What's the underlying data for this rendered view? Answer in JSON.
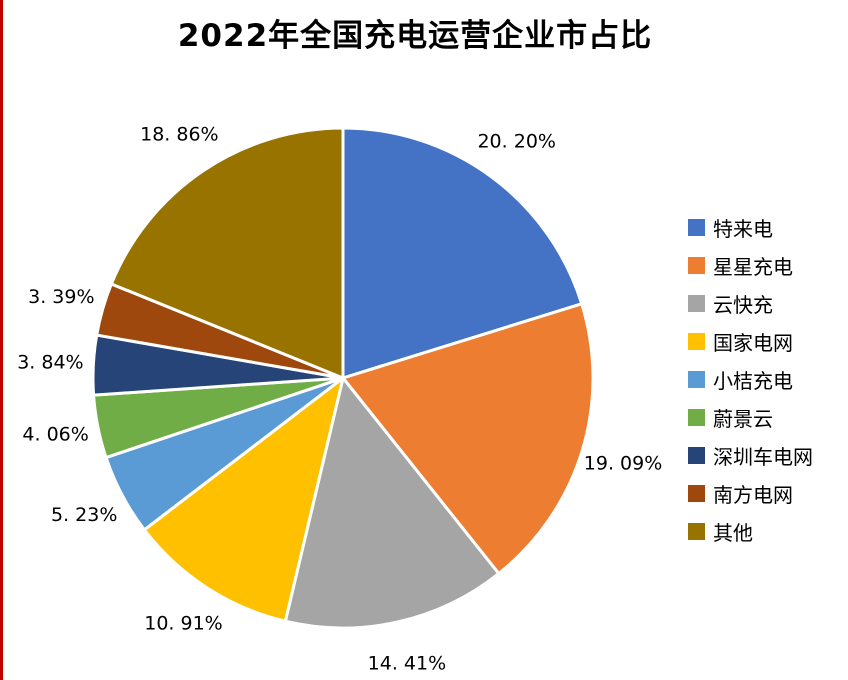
{
  "title": "2022年全国充电运营企业市占比",
  "accent_line_color": "#C00000",
  "chart_data": {
    "type": "pie",
    "title": "2022年全国充电运营企业市占比",
    "start_angle_deg": 0,
    "direction": "clockwise",
    "legend_position": "right",
    "slices": [
      {
        "label": "特来电",
        "value": 20.2,
        "display": "20. 20%",
        "color": "#4472C4"
      },
      {
        "label": "星星充电",
        "value": 19.09,
        "display": "19. 09%",
        "color": "#ED7D31"
      },
      {
        "label": "云快充",
        "value": 14.41,
        "display": "14. 41%",
        "color": "#A5A5A5"
      },
      {
        "label": "国家电网",
        "value": 10.91,
        "display": "10. 91%",
        "color": "#FFC000"
      },
      {
        "label": "小桔充电",
        "value": 5.23,
        "display": "5. 23%",
        "color": "#5B9BD5"
      },
      {
        "label": "蔚景云",
        "value": 4.06,
        "display": "4. 06%",
        "color": "#70AD47"
      },
      {
        "label": "深圳车电网",
        "value": 3.84,
        "display": "3. 84%",
        "color": "#264478"
      },
      {
        "label": "南方电网",
        "value": 3.39,
        "display": "3. 39%",
        "color": "#9E480E"
      },
      {
        "label": "其他",
        "value": 18.86,
        "display": "18. 86%",
        "color": "#997300"
      }
    ]
  }
}
